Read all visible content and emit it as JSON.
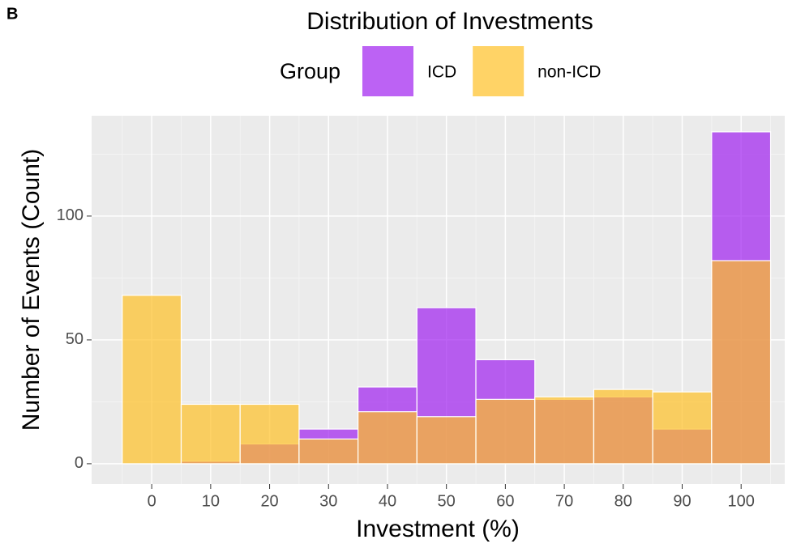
{
  "panel_label": "B",
  "chart_data": {
    "type": "histogram",
    "title": "Distribution of Investments",
    "x_label": "Investment (%)",
    "y_label": "Number of Events (Count)",
    "legend_title": "Group",
    "legend_position": "top",
    "bins": [
      -5,
      5,
      15,
      25,
      35,
      45,
      55,
      65,
      75,
      85,
      95,
      105
    ],
    "series": [
      {
        "name": "ICD",
        "color": "#a020f0",
        "values": [
          0,
          1,
          8,
          14,
          31,
          63,
          42,
          26,
          27,
          14,
          134
        ]
      },
      {
        "name": "non-ICD",
        "color": "#ffc125",
        "values": [
          68,
          24,
          24,
          10,
          21,
          19,
          26,
          27,
          30,
          29,
          82
        ]
      }
    ],
    "opacity": 0.7,
    "xlim": [
      -10.2,
      107.4
    ],
    "ylim": [
      -8.2,
      140.5
    ],
    "xticks": [
      0,
      10,
      20,
      30,
      40,
      50,
      60,
      70,
      80,
      90,
      100
    ],
    "yticks": [
      0,
      50,
      100
    ],
    "x_minor_ticks": [
      -5,
      5,
      15,
      25,
      35,
      45,
      55,
      65,
      75,
      85,
      95,
      105
    ],
    "y_minor_ticks": [
      25,
      75,
      125
    ],
    "grid": true
  }
}
